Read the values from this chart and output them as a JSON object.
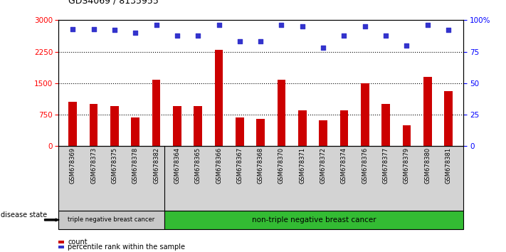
{
  "title": "GDS4069 / 8135955",
  "samples": [
    "GSM678369",
    "GSM678373",
    "GSM678375",
    "GSM678378",
    "GSM678382",
    "GSM678364",
    "GSM678365",
    "GSM678366",
    "GSM678367",
    "GSM678368",
    "GSM678370",
    "GSM678371",
    "GSM678372",
    "GSM678374",
    "GSM678376",
    "GSM678377",
    "GSM678379",
    "GSM678380",
    "GSM678381"
  ],
  "counts": [
    1050,
    1000,
    950,
    680,
    1580,
    950,
    950,
    2300,
    680,
    650,
    1580,
    850,
    620,
    850,
    1490,
    1000,
    500,
    1650,
    1310
  ],
  "percentiles": [
    93,
    93,
    92,
    90,
    96,
    88,
    88,
    96,
    83,
    83,
    96,
    95,
    78,
    88,
    95,
    88,
    80,
    96,
    92
  ],
  "group1_count": 5,
  "group1_label": "triple negative breast cancer",
  "group2_label": "non-triple negative breast cancer",
  "bar_color": "#cc0000",
  "dot_color": "#3333cc",
  "ylim_left": [
    0,
    3000
  ],
  "ylim_right": [
    0,
    100
  ],
  "yticks_left": [
    0,
    750,
    1500,
    2250,
    3000
  ],
  "yticks_right": [
    0,
    25,
    50,
    75,
    100
  ],
  "ytick_labels_right": [
    "0",
    "25",
    "50",
    "75",
    "100%"
  ],
  "grid_lines": [
    750,
    1500,
    2250
  ],
  "legend_count_label": "count",
  "legend_pct_label": "percentile rank within the sample",
  "disease_state_label": "disease state",
  "bg_tickarea": "#d3d3d3",
  "bg_group1_ds": "#c8c8c8",
  "bg_group2_ds": "#33bb33"
}
